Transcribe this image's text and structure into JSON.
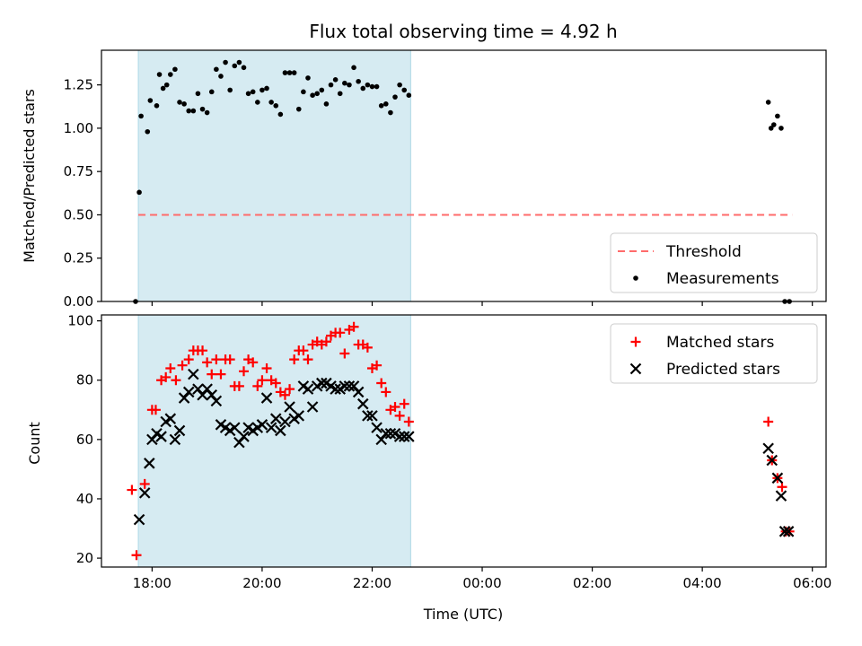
{
  "chart_data": [
    {
      "type": "scatter",
      "title": "Flux total observing time = 4.92 h",
      "ylabel": "Matched/Predicted stars",
      "xlabel": "",
      "ylim": [
        0,
        1.45
      ],
      "yticks": [
        0.0,
        0.25,
        0.5,
        0.75,
        1.0,
        1.25
      ],
      "ytick_labels": [
        "0.00",
        "0.25",
        "0.50",
        "0.75",
        "1.00",
        "1.25"
      ],
      "shaded_interval": [
        "17:45",
        "22:42"
      ],
      "shade_color": "#add8e6",
      "grid": false,
      "legend_position": "lower right",
      "threshold": {
        "name": "Threshold",
        "value": 0.5,
        "x_start": "17:45",
        "x_end": "05:38",
        "color": "#ff6b6b"
      },
      "series": [
        {
          "name": "Measurements",
          "marker": "dot",
          "color": "#000000",
          "x": [
            "17:42",
            "17:46",
            "17:48",
            "17:55",
            "17:58",
            "18:05",
            "18:08",
            "18:12",
            "18:16",
            "18:20",
            "18:25",
            "18:30",
            "18:35",
            "18:40",
            "18:45",
            "18:50",
            "18:55",
            "19:00",
            "19:05",
            "19:10",
            "19:15",
            "19:20",
            "19:25",
            "19:30",
            "19:35",
            "19:40",
            "19:45",
            "19:50",
            "19:55",
            "20:00",
            "20:05",
            "20:10",
            "20:15",
            "20:20",
            "20:25",
            "20:30",
            "20:35",
            "20:40",
            "20:45",
            "20:50",
            "20:55",
            "21:00",
            "21:05",
            "21:10",
            "21:15",
            "21:20",
            "21:25",
            "21:30",
            "21:35",
            "21:40",
            "21:45",
            "21:50",
            "21:55",
            "22:00",
            "22:05",
            "22:10",
            "22:15",
            "22:20",
            "22:25",
            "22:30",
            "22:35",
            "22:40",
            "05:12",
            "05:15",
            "05:18",
            "05:22",
            "05:26",
            "05:30",
            "05:35"
          ],
          "y": [
            0.0,
            0.63,
            1.07,
            0.98,
            1.16,
            1.13,
            1.31,
            1.23,
            1.25,
            1.31,
            1.34,
            1.15,
            1.14,
            1.1,
            1.1,
            1.2,
            1.11,
            1.09,
            1.21,
            1.34,
            1.3,
            1.38,
            1.22,
            1.36,
            1.38,
            1.35,
            1.2,
            1.21,
            1.15,
            1.22,
            1.23,
            1.15,
            1.13,
            1.08,
            1.32,
            1.32,
            1.32,
            1.11,
            1.21,
            1.29,
            1.19,
            1.2,
            1.22,
            1.14,
            1.25,
            1.28,
            1.2,
            1.26,
            1.25,
            1.35,
            1.27,
            1.23,
            1.25,
            1.24,
            1.24,
            1.13,
            1.14,
            1.09,
            1.18,
            1.25,
            1.22,
            1.19,
            1.15,
            1.0,
            1.02,
            1.07,
            1.0,
            0.0,
            0.0
          ]
        }
      ]
    },
    {
      "type": "scatter",
      "title": "",
      "ylabel": "Count",
      "xlabel": "Time (UTC)",
      "ylim": [
        17,
        102
      ],
      "yticks": [
        20,
        40,
        60,
        80,
        100
      ],
      "ytick_labels": [
        "20",
        "40",
        "60",
        "80",
        "100"
      ],
      "xticks": [
        "18:00",
        "20:00",
        "22:00",
        "00:00",
        "02:00",
        "04:00",
        "06:00"
      ],
      "shaded_interval": [
        "17:45",
        "22:42"
      ],
      "shade_color": "#add8e6",
      "grid": false,
      "legend_position": "upper right",
      "series": [
        {
          "name": "Matched stars",
          "marker": "plus",
          "color": "#ff0000",
          "x": [
            "17:38",
            "17:43",
            "17:52",
            "18:00",
            "18:04",
            "18:10",
            "18:15",
            "18:20",
            "18:26",
            "18:33",
            "18:40",
            "18:45",
            "18:50",
            "18:55",
            "19:00",
            "19:05",
            "19:10",
            "19:15",
            "19:20",
            "19:25",
            "19:30",
            "19:35",
            "19:40",
            "19:45",
            "19:50",
            "19:55",
            "20:00",
            "20:05",
            "20:10",
            "20:15",
            "20:20",
            "20:25",
            "20:30",
            "20:35",
            "20:40",
            "20:45",
            "20:50",
            "20:55",
            "21:00",
            "21:05",
            "21:10",
            "21:15",
            "21:20",
            "21:25",
            "21:30",
            "21:35",
            "21:40",
            "21:45",
            "21:50",
            "21:55",
            "22:00",
            "22:05",
            "22:10",
            "22:15",
            "22:20",
            "22:25",
            "22:30",
            "22:35",
            "22:40",
            "05:12",
            "05:16",
            "05:22",
            "05:27",
            "05:31",
            "05:35"
          ],
          "y": [
            43,
            21,
            45,
            70,
            70,
            80,
            81,
            84,
            80,
            85,
            87,
            90,
            90,
            90,
            86,
            82,
            87,
            82,
            87,
            87,
            78,
            78,
            83,
            87,
            86,
            78,
            80,
            84,
            80,
            79,
            76,
            75,
            77,
            87,
            90,
            90,
            87,
            92,
            93,
            92,
            93,
            95,
            96,
            96,
            89,
            97,
            98,
            92,
            92,
            91,
            84,
            85,
            79,
            76,
            70,
            71,
            68,
            72,
            66,
            66,
            53,
            47,
            44,
            29,
            29
          ],
          "note": ""
        },
        {
          "name": "Predicted stars",
          "marker": "x",
          "color": "#000000",
          "x": [
            "17:46",
            "17:52",
            "17:57",
            "18:00",
            "18:05",
            "18:10",
            "18:15",
            "18:20",
            "18:25",
            "18:30",
            "18:35",
            "18:40",
            "18:45",
            "18:50",
            "18:55",
            "19:00",
            "19:05",
            "19:10",
            "19:15",
            "19:20",
            "19:25",
            "19:30",
            "19:35",
            "19:40",
            "19:45",
            "19:50",
            "19:55",
            "20:00",
            "20:05",
            "20:10",
            "20:15",
            "20:20",
            "20:25",
            "20:30",
            "20:35",
            "20:40",
            "20:45",
            "20:50",
            "20:55",
            "21:00",
            "21:05",
            "21:10",
            "21:15",
            "21:20",
            "21:25",
            "21:30",
            "21:35",
            "21:40",
            "21:45",
            "21:50",
            "21:55",
            "22:00",
            "22:05",
            "22:10",
            "22:15",
            "22:20",
            "22:25",
            "22:30",
            "22:35",
            "22:40",
            "05:12",
            "05:16",
            "05:22",
            "05:26",
            "05:30",
            "05:34"
          ],
          "y": [
            33,
            42,
            52,
            60,
            62,
            61,
            66,
            67,
            60,
            63,
            74,
            76,
            82,
            77,
            75,
            77,
            75,
            73,
            65,
            64,
            63,
            64,
            59,
            61,
            64,
            63,
            64,
            65,
            74,
            64,
            67,
            63,
            66,
            71,
            67,
            68,
            78,
            77,
            71,
            78,
            79,
            79,
            78,
            77,
            77,
            78,
            78,
            78,
            76,
            72,
            68,
            68,
            64,
            60,
            62,
            62,
            62,
            61,
            61,
            61,
            57,
            53,
            47,
            41,
            29,
            29
          ]
        }
      ]
    }
  ]
}
